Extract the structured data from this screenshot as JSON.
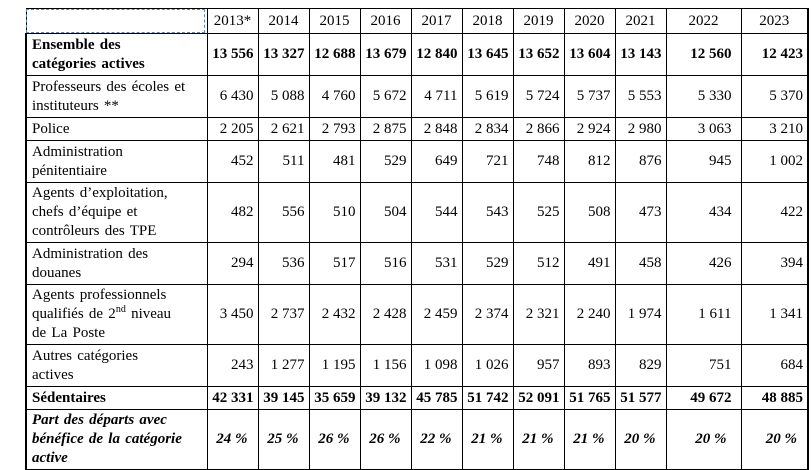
{
  "document": {
    "background_color": "#ffffff",
    "selection_outline_color": "#5b87b5",
    "table": {
      "border_color": "#000000",
      "corner_label": "",
      "columns": [
        "2013*",
        "2014",
        "2015",
        "2016",
        "2017",
        "2018",
        "2019",
        "2020",
        "2021",
        "2022",
        "2023"
      ],
      "rows": [
        {
          "label": "Ensemble des\ncatégories actives",
          "style": "bold",
          "values": [
            "13 556",
            "13 327",
            "12 688",
            "13 679",
            "12 840",
            "13 645",
            "13 652",
            "13 604",
            "13 143",
            "12 560",
            "12 423"
          ]
        },
        {
          "label": "Professeurs des écoles et\ninstituteurs **",
          "style": "normal",
          "values": [
            "6 430",
            "5 088",
            "4 760",
            "5 672",
            "4 711",
            "5 619",
            "5 724",
            "5 737",
            "5 553",
            "5 330",
            "5 370"
          ]
        },
        {
          "label": "Police",
          "style": "normal",
          "values": [
            "2 205",
            "2 621",
            "2 793",
            "2 875",
            "2 848",
            "2 834",
            "2 866",
            "2 924",
            "2 980",
            "3 063",
            "3 210"
          ]
        },
        {
          "label": "Administration\npénitentiaire",
          "style": "normal",
          "values": [
            "452",
            "511",
            "481",
            "529",
            "649",
            "721",
            "748",
            "812",
            "876",
            "945",
            "1 002"
          ]
        },
        {
          "label": "Agents d’exploitation,\nchefs d’équipe et\ncontrôleurs des TPE",
          "style": "normal",
          "values": [
            "482",
            "556",
            "510",
            "504",
            "544",
            "543",
            "525",
            "508",
            "473",
            "434",
            "422"
          ]
        },
        {
          "label": "Administration des\ndouanes",
          "style": "normal",
          "values": [
            "294",
            "536",
            "517",
            "516",
            "531",
            "529",
            "512",
            "491",
            "458",
            "426",
            "394"
          ]
        },
        {
          "label": "Agents professionnels\nqualifiés de 2",
          "label_sup": "nd",
          "label_after": " niveau\nde La Poste",
          "style": "normal",
          "values": [
            "3 450",
            "2 737",
            "2 432",
            "2 428",
            "2 459",
            "2 374",
            "2 321",
            "2 240",
            "1 974",
            "1 611",
            "1 341"
          ]
        },
        {
          "label": "Autres catégories\nactives",
          "style": "normal",
          "values": [
            "243",
            "1 277",
            "1 195",
            "1 156",
            "1 098",
            "1 026",
            "957",
            "893",
            "829",
            "751",
            "684"
          ]
        },
        {
          "label": "Sédentaires",
          "style": "bold",
          "values": [
            "42 331",
            "39 145",
            "35 659",
            "39 132",
            "45 785",
            "51 742",
            "52 091",
            "51 765",
            "51 577",
            "49 672",
            "48 885"
          ]
        },
        {
          "label": "Part des départs avec\nbénéfice de la catégorie\nactive",
          "style": "bold-italic",
          "values": [
            "24 %",
            "25 %",
            "26 %",
            "26 %",
            "22 %",
            "21 %",
            "21 %",
            "21 %",
            "20 %",
            "20 %",
            "20 %"
          ]
        }
      ]
    }
  }
}
